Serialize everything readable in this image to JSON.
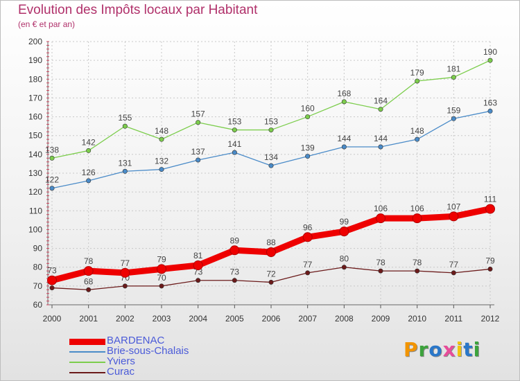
{
  "title": "Evolution des Impôts locaux par Habitant",
  "subtitle": "(en € et par an)",
  "logo": {
    "letters": [
      "P",
      "r",
      "o",
      "x",
      "i",
      "t",
      "i"
    ],
    "colors": [
      "#f29400",
      "#3ca33c",
      "#2a77c9",
      "#e74c9a",
      "#f1c40f",
      "#2a77c9",
      "#3ca33c"
    ]
  },
  "chart_data": {
    "type": "line",
    "x": [
      2000,
      2001,
      2002,
      2003,
      2004,
      2005,
      2006,
      2007,
      2008,
      2009,
      2010,
      2011,
      2012
    ],
    "ylim": [
      60,
      200
    ],
    "yticks": [
      60,
      70,
      80,
      90,
      100,
      110,
      120,
      130,
      140,
      150,
      160,
      170,
      180,
      190,
      200
    ],
    "grid": true,
    "legend_position": "bottom-left",
    "series": [
      {
        "name": "BARDENAC",
        "color": "#ee0000",
        "values": [
          73,
          78,
          77,
          79,
          81,
          89,
          88,
          96,
          99,
          106,
          106,
          107,
          111
        ]
      },
      {
        "name": "Brie-sous-Chalais",
        "color": "#4a8bc8",
        "values": [
          122,
          126,
          131,
          132,
          137,
          141,
          134,
          139,
          144,
          144,
          148,
          159,
          163
        ]
      },
      {
        "name": "Yviers",
        "color": "#7ccd4c",
        "values": [
          138,
          142,
          155,
          148,
          157,
          153,
          153,
          160,
          168,
          164,
          179,
          181,
          190
        ]
      },
      {
        "name": "Curac",
        "color": "#6b1a1a",
        "values": [
          69,
          68,
          70,
          70,
          73,
          73,
          72,
          77,
          80,
          78,
          78,
          77,
          79
        ]
      }
    ]
  }
}
